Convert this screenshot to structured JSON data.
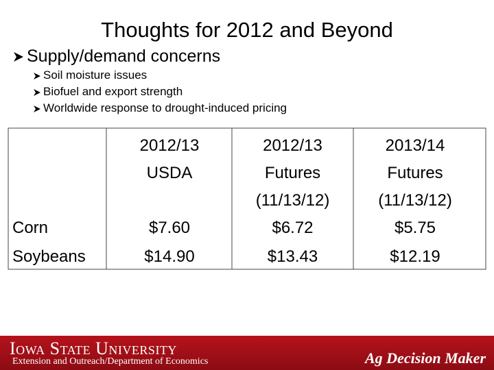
{
  "header": {
    "title": "Thoughts for 2012 and Beyond"
  },
  "bullets": {
    "main": "Supply/demand concerns",
    "sub": [
      "Soil moisture issues",
      "Biofuel and export strength",
      "Worldwide response to drought-induced pricing"
    ]
  },
  "table": {
    "columns": [
      [
        "2012/13",
        "USDA"
      ],
      [
        "2012/13",
        "Futures",
        "(11/13/12)"
      ],
      [
        "2013/14",
        "Futures",
        "(11/13/12)"
      ]
    ],
    "rows": [
      [
        "Corn",
        "$7.60",
        "$6.72",
        "$5.75"
      ],
      [
        "Soybeans",
        "$14.90",
        "$13.43",
        "$12.19"
      ]
    ]
  },
  "footer": {
    "university": "Iowa State University",
    "department": "Extension and Outreach/Department of Economics",
    "brand": "Ag Decision Maker"
  }
}
